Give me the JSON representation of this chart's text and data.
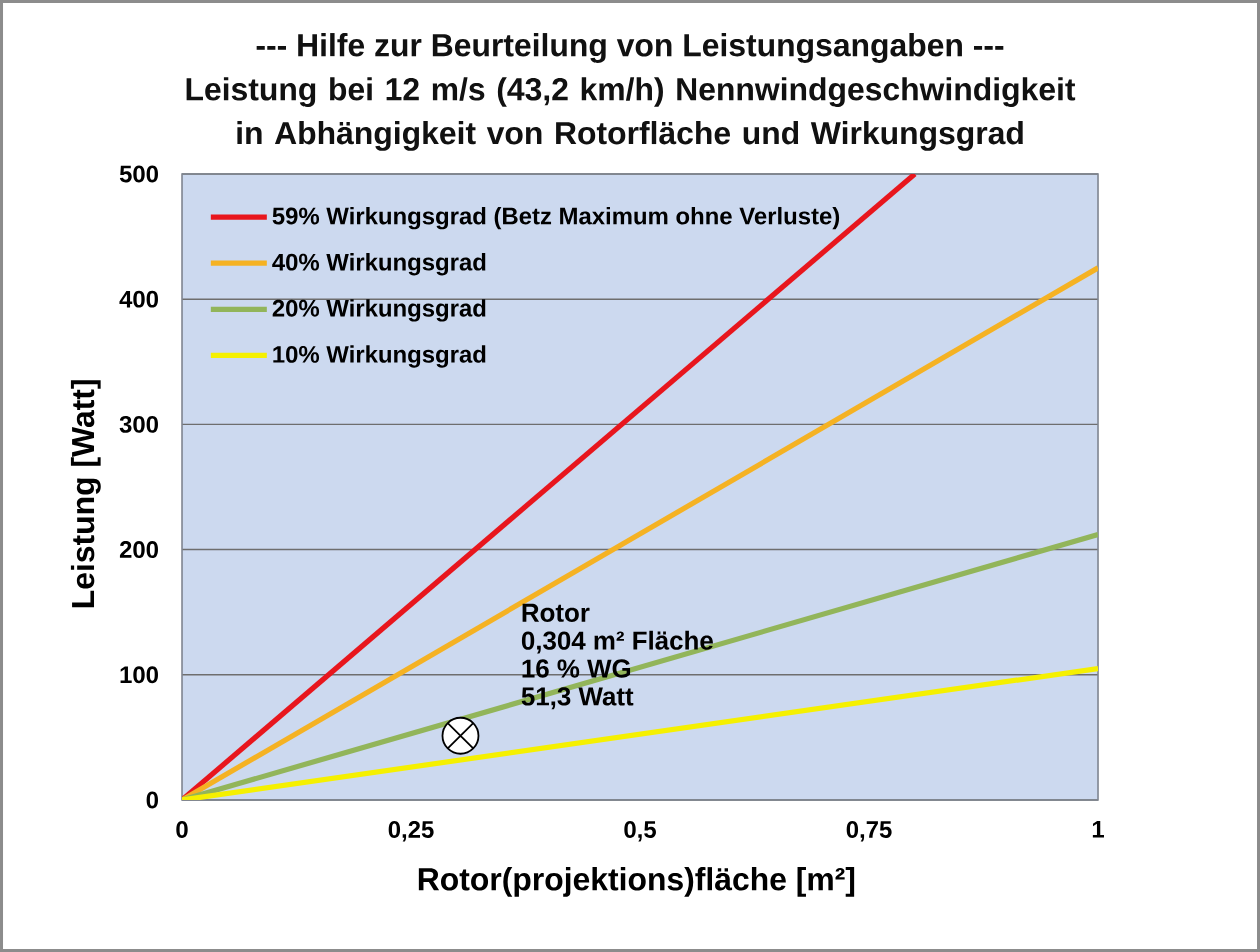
{
  "chart_data": {
    "type": "line",
    "title": "--- Hilfe zur Beurteilung von Leistungsangaben ---",
    "subtitle": "Leistung bei 12 m/s (43,2 km/h) Nennwindgeschwindigkeit in Abhängigkeit von Rotorfläche und Wirkungsgrad",
    "xlabel": "Rotor(projektions)fläche [m²]",
    "ylabel": "Leistung [Watt]",
    "xlim": [
      0,
      1
    ],
    "ylim": [
      0,
      500
    ],
    "xticks": [
      0,
      {
        "value": 0.25,
        "label": "0,25"
      },
      {
        "value": 0.5,
        "label": "0,5"
      },
      {
        "value": 0.75,
        "label": "0,75"
      },
      1
    ],
    "yticks": [
      0,
      100,
      200,
      300,
      400,
      500
    ],
    "grid": "y",
    "legend": "top left",
    "series": [
      {
        "name": "59% Wirkungsgrad (Betz Maximum ohne Verluste)",
        "color": "#e8161d",
        "x": [
          0,
          0.8
        ],
        "values": [
          0,
          500
        ]
      },
      {
        "name": "40% Wirkungsgrad",
        "color": "#f5b223",
        "x": [
          0,
          1
        ],
        "values": [
          0,
          425
        ]
      },
      {
        "name": "20% Wirkungsgrad",
        "color": "#92b55a",
        "x": [
          0,
          1
        ],
        "values": [
          0,
          212
        ]
      },
      {
        "name": "10% Wirkungsgrad",
        "color": "#f5f000",
        "x": [
          0,
          1
        ],
        "values": [
          0,
          105
        ]
      },
      {
        "type": "scatter",
        "marker": "cross",
        "color": "#000000",
        "x": [
          0.304
        ],
        "values": [
          51.3
        ]
      }
    ],
    "annotations": [
      "Rotor",
      "0,304 m² Fläche",
      "16 % WG",
      "51,3 Watt"
    ]
  }
}
